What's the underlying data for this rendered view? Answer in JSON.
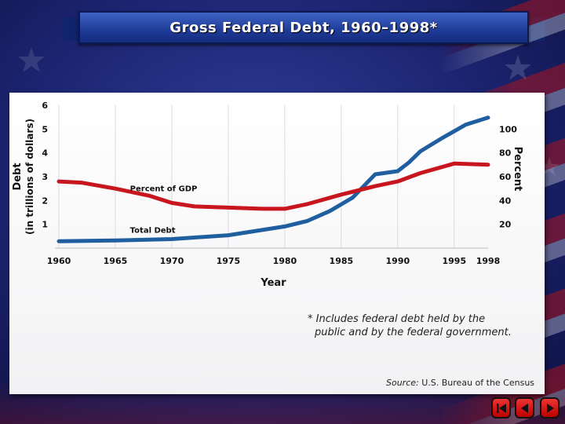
{
  "title": "Gross Federal Debt, 1960–1998*",
  "footnote": {
    "line1": "* Includes federal debt held by the",
    "line2": "public and by the federal government."
  },
  "source": {
    "label": "Source:",
    "text": "U.S. Bureau of the Census"
  },
  "nav": {
    "first_icon": "skip-to-first-icon",
    "prev_icon": "previous-icon",
    "next_icon": "next-icon"
  },
  "colors": {
    "debt_line": "#1f5fa0",
    "percent_line": "#c8161e",
    "panel": "#ffffff",
    "nav_button": "#d11a1a"
  },
  "chart_data": {
    "type": "line",
    "title": "Gross Federal Debt, 1960–1998*",
    "xlabel": "Year",
    "ylabel_left": "Debt (in trillions of dollars)",
    "ylabel_right": "Percent",
    "x_ticks": [
      1960,
      1965,
      1970,
      1975,
      1980,
      1985,
      1990,
      1995,
      1998
    ],
    "y_left_ticks": [
      1,
      2,
      3,
      4,
      5,
      6
    ],
    "y_right_ticks": [
      20,
      40,
      60,
      80,
      100
    ],
    "xlim": [
      1960,
      1998
    ],
    "ylim_left": [
      0,
      6
    ],
    "ylim_right": [
      0,
      120
    ],
    "grid": "vertical",
    "series": [
      {
        "name": "Total Debt",
        "axis": "left",
        "x": [
          1960,
          1965,
          1970,
          1975,
          1980,
          1982,
          1984,
          1986,
          1988,
          1990,
          1991,
          1992,
          1994,
          1996,
          1998
        ],
        "values": [
          0.29,
          0.32,
          0.38,
          0.54,
          0.91,
          1.14,
          1.56,
          2.12,
          3.1,
          3.23,
          3.6,
          4.06,
          4.64,
          5.18,
          5.48
        ]
      },
      {
        "name": "Percent of GDP",
        "axis": "right",
        "x": [
          1960,
          1962,
          1965,
          1968,
          1970,
          1972,
          1975,
          1978,
          1980,
          1982,
          1985,
          1988,
          1990,
          1992,
          1995,
          1998
        ],
        "values": [
          56,
          55,
          50,
          44,
          38,
          35,
          34,
          33,
          33,
          37,
          45,
          52,
          56,
          63,
          71,
          70
        ]
      }
    ],
    "annotations": [
      "Percent of GDP",
      "Total Debt"
    ]
  }
}
